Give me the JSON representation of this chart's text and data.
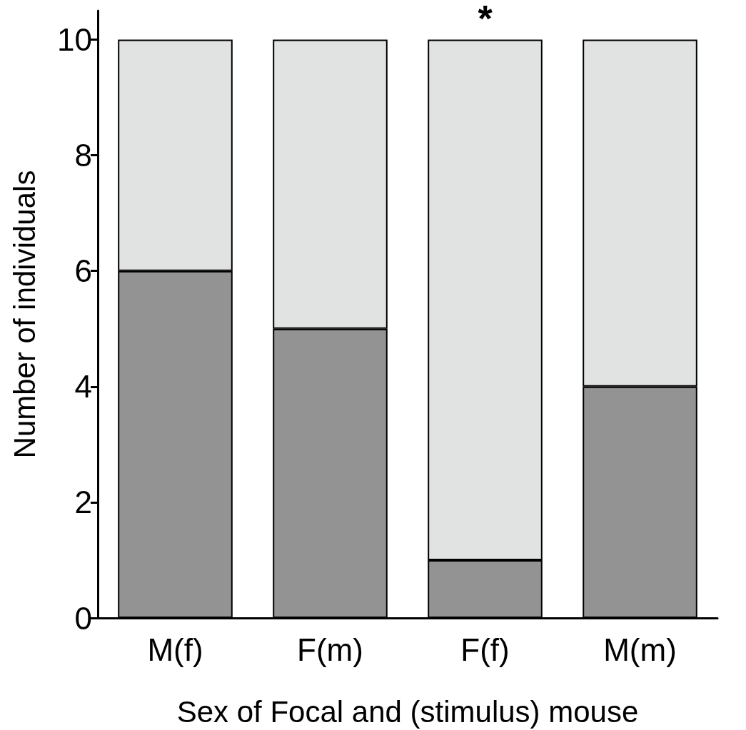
{
  "chart_data": {
    "type": "bar",
    "stacked": true,
    "xlabel": "Sex of Focal and (stimulus) mouse",
    "ylabel": "Number of individuals",
    "categories": [
      "M(f)",
      "F(m)",
      "F(f)",
      "M(m)"
    ],
    "series": [
      {
        "color": "#939393",
        "values": [
          6,
          5,
          1,
          4
        ]
      },
      {
        "color": "#e1e2e2",
        "values": [
          4,
          5,
          9,
          6
        ]
      }
    ],
    "ylim": [
      0,
      10.5
    ],
    "yticks": [
      0,
      2,
      4,
      6,
      8,
      10
    ],
    "grid": false,
    "annotations": [
      {
        "text": "*",
        "x": "F(f)",
        "y": 10
      }
    ]
  }
}
